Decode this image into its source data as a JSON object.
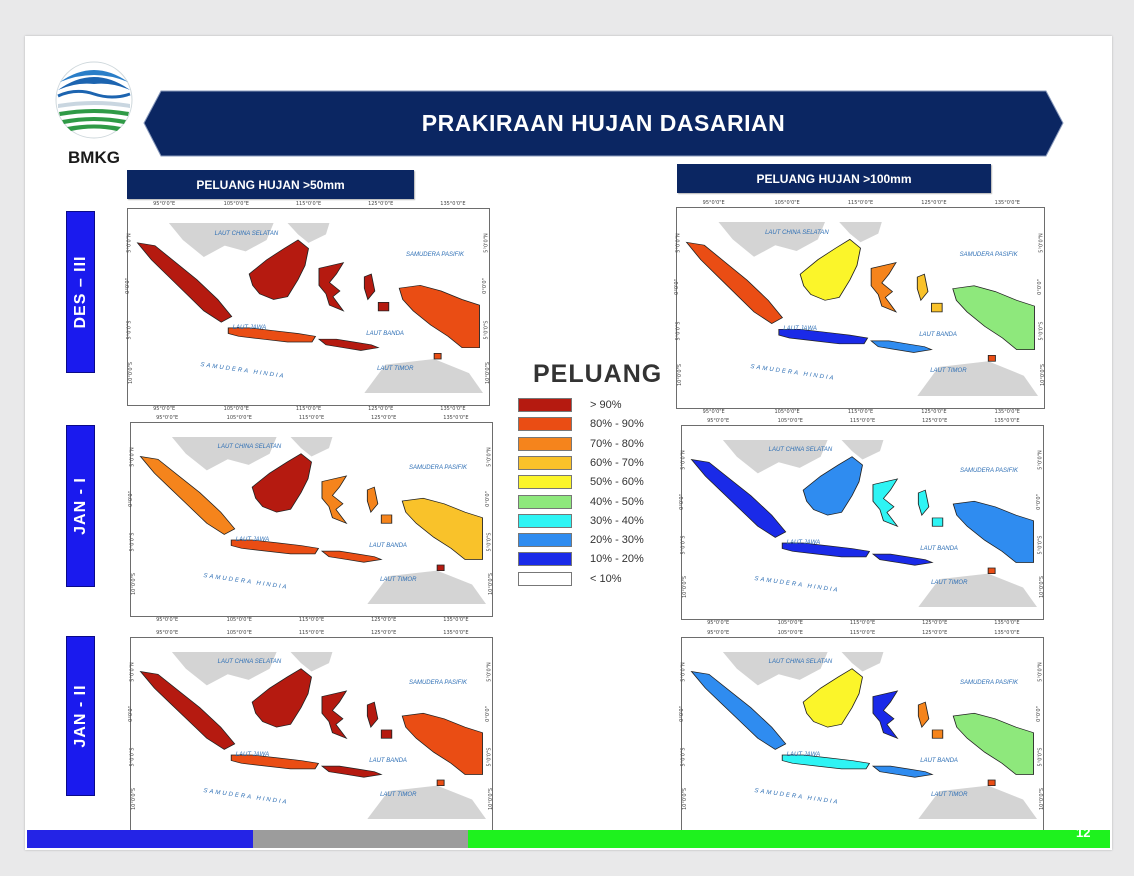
{
  "header": {
    "logo_text": "BMKG",
    "title": "PRAKIRAAN HUJAN DASARIAN"
  },
  "columns": [
    {
      "label": "PELUANG HUJAN >50mm"
    },
    {
      "label": "PELUANG HUJAN >100mm"
    }
  ],
  "rows": [
    {
      "label": "DES – III"
    },
    {
      "label": "JAN - I"
    },
    {
      "label": "JAN - II"
    }
  ],
  "map_labels": {
    "lcs": "LAUT CHINA SELATAN",
    "pasifik": "SAMUDERA PASIFIK",
    "hindia": "SAMUDERA HINDIA",
    "jawa": "LAUT JAWA",
    "banda": "LAUT BANDA",
    "timor": "LAUT TIMOR"
  },
  "map_ticks": {
    "lon": [
      "95°0'0\"E",
      "105°0'0\"E",
      "115°0'0\"E",
      "125°0'0\"E",
      "135°0'0\"E"
    ],
    "lat": [
      "5°0'0\"N",
      "0°0'0\"",
      "5°0'0\"S",
      "10°0'0\"S"
    ]
  },
  "maps": [
    {
      "panel": "DES – III | >50mm",
      "tone": "red"
    },
    {
      "panel": "DES – III | >100mm",
      "tone": "mixed-warm"
    },
    {
      "panel": "JAN - I | >50mm",
      "tone": "orange"
    },
    {
      "panel": "JAN - I | >100mm",
      "tone": "blue"
    },
    {
      "panel": "JAN - II | >50mm",
      "tone": "red"
    },
    {
      "panel": "JAN - II | >100mm",
      "tone": "mixed-cool"
    }
  ],
  "legend": {
    "title": "PELUANG",
    "items": [
      {
        "label": "> 90%",
        "color": "#b51a10"
      },
      {
        "label": "80% - 90%",
        "color": "#ea4d14"
      },
      {
        "label": "70% - 80%",
        "color": "#f5841c"
      },
      {
        "label": "60% - 70%",
        "color": "#f9c22a"
      },
      {
        "label": "50% - 60%",
        "color": "#fbf52a"
      },
      {
        "label": "40% - 50%",
        "color": "#8ee87c"
      },
      {
        "label": "30% - 40%",
        "color": "#2ef4f4"
      },
      {
        "label": "20% - 30%",
        "color": "#2f8cf0"
      },
      {
        "label": "10% - 20%",
        "color": "#1a2ae8"
      },
      {
        "label": "< 10%",
        "color": "#ffffff"
      }
    ]
  },
  "footer": {
    "page_number": "12"
  },
  "colors": {
    "banner": "#0b2662",
    "row_tab": "#1a1aee",
    "footer_blue": "#2424e6",
    "footer_gray": "#9c9c9c",
    "footer_green": "#1ef21e"
  }
}
